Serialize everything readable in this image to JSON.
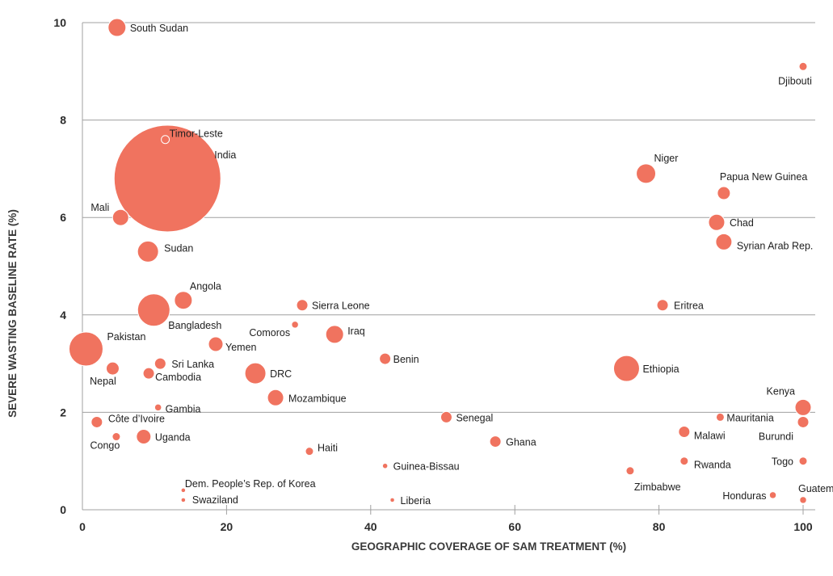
{
  "colors": {
    "bubble": "#f0735f",
    "bubble_stroke": "#ffffff",
    "grid": "#a0a0a0"
  },
  "chart_data": {
    "type": "scatter",
    "subtype": "bubble",
    "xlabel": "GEOGRAPHIC COVERAGE OF SAM TREATMENT (%)",
    "ylabel": "SEVERE WASTING BASELINE RATE (%)",
    "xlim": [
      0,
      100
    ],
    "ylim": [
      0,
      10
    ],
    "xticks": [
      0,
      20,
      40,
      60,
      80,
      100
    ],
    "yticks": [
      0,
      2,
      4,
      6,
      8,
      10
    ],
    "grid": "horizontal",
    "points": [
      {
        "label": "South Sudan",
        "x": 4.8,
        "y": 9.9,
        "size": 11
      },
      {
        "label": "Djibouti",
        "x": 100,
        "y": 9.1,
        "size": 5
      },
      {
        "label": "Timor-Leste",
        "x": 11.5,
        "y": 7.6,
        "size": 5
      },
      {
        "label": "India",
        "x": 11.8,
        "y": 6.8,
        "size": 66
      },
      {
        "label": "Niger",
        "x": 78.2,
        "y": 6.9,
        "size": 12
      },
      {
        "label": "Papua New Guinea",
        "x": 89.0,
        "y": 6.5,
        "size": 8
      },
      {
        "label": "Mali",
        "x": 5.3,
        "y": 6.0,
        "size": 10
      },
      {
        "label": "Chad",
        "x": 88.0,
        "y": 5.9,
        "size": 10
      },
      {
        "label": "Syrian Arab Rep.",
        "x": 89.0,
        "y": 5.5,
        "size": 10
      },
      {
        "label": "Sudan",
        "x": 9.1,
        "y": 5.3,
        "size": 13
      },
      {
        "label": "Angola",
        "x": 14.0,
        "y": 4.3,
        "size": 11
      },
      {
        "label": "Bangladesh",
        "x": 9.9,
        "y": 4.1,
        "size": 20
      },
      {
        "label": "Sierra Leone",
        "x": 30.5,
        "y": 4.2,
        "size": 7
      },
      {
        "label": "Eritrea",
        "x": 80.5,
        "y": 4.2,
        "size": 7
      },
      {
        "label": "Comoros",
        "x": 29.5,
        "y": 3.8,
        "size": 4
      },
      {
        "label": "Iraq",
        "x": 35.0,
        "y": 3.6,
        "size": 11
      },
      {
        "label": "Pakistan",
        "x": 0.5,
        "y": 3.3,
        "size": 21
      },
      {
        "label": "Yemen",
        "x": 18.5,
        "y": 3.4,
        "size": 9
      },
      {
        "label": "Benin",
        "x": 42.0,
        "y": 3.1,
        "size": 7
      },
      {
        "label": "Sri Lanka",
        "x": 10.8,
        "y": 3.0,
        "size": 7
      },
      {
        "label": "Nepal",
        "x": 4.2,
        "y": 2.9,
        "size": 8
      },
      {
        "label": "Cambodia",
        "x": 9.2,
        "y": 2.8,
        "size": 7
      },
      {
        "label": "DRC",
        "x": 24.0,
        "y": 2.8,
        "size": 13
      },
      {
        "label": "Ethiopia",
        "x": 75.5,
        "y": 2.9,
        "size": 16
      },
      {
        "label": "Mozambique",
        "x": 26.8,
        "y": 2.3,
        "size": 10
      },
      {
        "label": "Kenya",
        "x": 100,
        "y": 2.1,
        "size": 10
      },
      {
        "label": "Gambia",
        "x": 10.5,
        "y": 2.1,
        "size": 4
      },
      {
        "label": "Senegal",
        "x": 50.5,
        "y": 1.9,
        "size": 7
      },
      {
        "label": "Mauritania",
        "x": 88.5,
        "y": 1.9,
        "size": 5
      },
      {
        "label": "Côte d’Ivoire",
        "x": 2.0,
        "y": 1.8,
        "size": 7
      },
      {
        "label": "Burundi",
        "x": 100,
        "y": 1.8,
        "size": 7
      },
      {
        "label": "Malawi",
        "x": 83.5,
        "y": 1.6,
        "size": 7
      },
      {
        "label": "Congo",
        "x": 4.7,
        "y": 1.5,
        "size": 5
      },
      {
        "label": "Uganda",
        "x": 8.5,
        "y": 1.5,
        "size": 9
      },
      {
        "label": "Ghana",
        "x": 57.3,
        "y": 1.4,
        "size": 7
      },
      {
        "label": "Haiti",
        "x": 31.5,
        "y": 1.2,
        "size": 5
      },
      {
        "label": "Rwanda",
        "x": 83.5,
        "y": 1.0,
        "size": 5
      },
      {
        "label": "Togo",
        "x": 100,
        "y": 1.0,
        "size": 5
      },
      {
        "label": "Guinea-Bissau",
        "x": 42.0,
        "y": 0.9,
        "size": 3
      },
      {
        "label": "Zimbabwe",
        "x": 76.0,
        "y": 0.8,
        "size": 5
      },
      {
        "label": "Dem. People’s Rep. of Korea",
        "x": 14.0,
        "y": 0.4,
        "size": 2.5
      },
      {
        "label": "Honduras",
        "x": 95.8,
        "y": 0.3,
        "size": 4
      },
      {
        "label": "Swaziland",
        "x": 14.0,
        "y": 0.2,
        "size": 2.5
      },
      {
        "label": "Liberia",
        "x": 43.0,
        "y": 0.2,
        "size": 2.5
      },
      {
        "label": "Guatemala",
        "x": 100,
        "y": 0.2,
        "size": 4
      }
    ]
  }
}
